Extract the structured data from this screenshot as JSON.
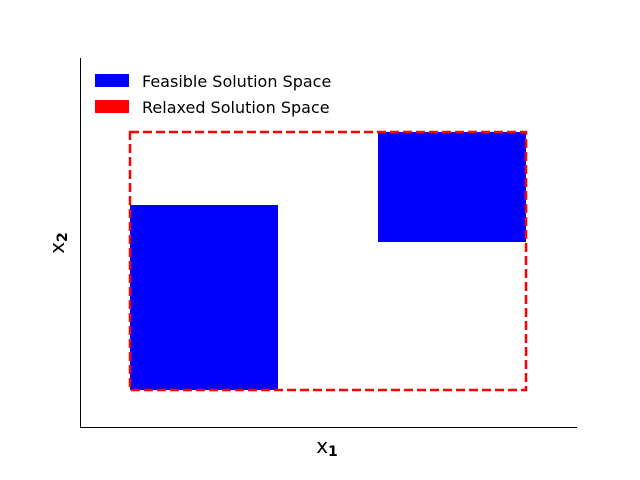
{
  "diagram": {
    "axes": {
      "x_label": "x",
      "x_label_subscript": "1",
      "y_label": "x",
      "y_label_subscript": "2"
    },
    "legend": {
      "placement": "top-left",
      "items": [
        {
          "label": "Feasible Solution Space",
          "color": "#0000ff"
        },
        {
          "label": "Relaxed Solution Space",
          "color": "#ff0000"
        }
      ]
    },
    "colors": {
      "feasible": "#0000ff",
      "relaxed": "#ff0000",
      "axis": "#000000"
    }
  }
}
